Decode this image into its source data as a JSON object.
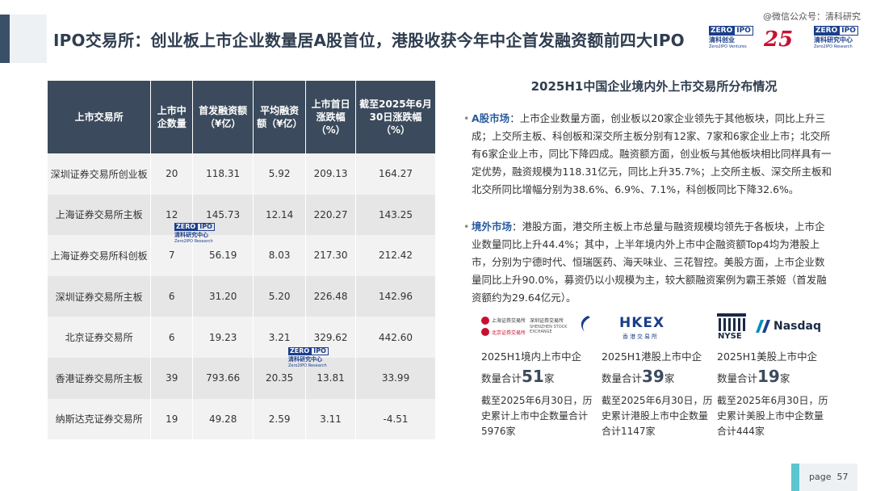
{
  "header": {
    "title": "IPO交易所：创业板上市企业数量居A股首位，港股收获今年中企首发融资额前四大IPO",
    "watermark": "@微信公众号：清科研究"
  },
  "brand_logos": {
    "zero_box_left": "ZERO",
    "zero_box_right": "IPO",
    "ventures_cn": "清科创业",
    "ventures_en": "Zero2IPO Ventures",
    "anniv": "25",
    "research_cn": "清科研究中心",
    "research_en": "Zero2IPO Research"
  },
  "table": {
    "headers": [
      "上市交易所",
      "上市中企数量",
      "首发融资额（¥亿）",
      "平均融资额（¥亿）",
      "上市首日涨跌幅（%）",
      "截至2025年6月30日涨跌幅（%）"
    ],
    "rows": [
      [
        "深圳证券交易所创业板",
        "20",
        "118.31",
        "5.92",
        "209.13",
        "164.27"
      ],
      [
        "上海证券交易所主板",
        "12",
        "145.73",
        "12.14",
        "220.27",
        "143.25"
      ],
      [
        "上海证券交易所科创板",
        "7",
        "56.19",
        "8.03",
        "217.30",
        "212.42"
      ],
      [
        "深圳证券交易所主板",
        "6",
        "31.20",
        "5.20",
        "226.48",
        "142.96"
      ],
      [
        "北京证券交易所",
        "6",
        "19.23",
        "3.21",
        "329.62",
        "442.60"
      ],
      [
        "香港证券交易所主板",
        "39",
        "793.66",
        "20.35",
        "13.81",
        "33.99"
      ],
      [
        "纳斯达克证券交易所",
        "19",
        "49.28",
        "2.59",
        "3.11",
        "-4.51"
      ]
    ],
    "negative_color": "#e0281e"
  },
  "right": {
    "title": "2025H1中国企业境内外上市交易所分布情况",
    "a_share_head": "A股市场",
    "a_share_text": "：上市企业数量方面，创业板以20家企业领先于其他板块，同比上升三成；上交所主板、科创板和深交所主板分别有12家、7家和6家企业上市；北交所有6家企业上市，同比下降四成。融资额方面，创业板与其他板块相比同样具有一定优势，融资规模为118.31亿元，同比上升35.7%；上交所主板、深交所主板和北交所同比增幅分别为38.6%、6.9%、7.1%，科创板同比下降32.6%。",
    "overseas_head": "境外市场",
    "overseas_text": "：港股方面，港交所主板上市总量与融资规模均领先于各板块，上市企业数量同比上升44.4%；其中，上半年境内外上市中企融资额Top4均为港股上市，分别为宁德时代、恒瑞医药、海天味业、三花智控。美股方面，上市企业数量同比上升90.0%，募资仍以小规模为主，较大额融资案例为霸王茶姬（首发融资额约为29.64亿元）。"
  },
  "exchanges": [
    {
      "logo_texts": [
        "上海证券交易所",
        "北京证券交易所",
        "深圳证券交易所",
        "SHENZHEN STOCK EXCHANGE"
      ],
      "line1": "2025H1境内上市中企",
      "prefix": "数量合计",
      "count": "51",
      "unit": "家",
      "note": "截至2025年6月30日，历史累计上市中企数量合计5976家"
    },
    {
      "logo_texts": [
        "HKEX",
        "香港交易所"
      ],
      "line1": "2025H1港股上市中企",
      "prefix": "数量合计",
      "count": "39",
      "unit": "家",
      "note": "截至2025年6月30日，历史累计港股上市中企数量合计1147家"
    },
    {
      "logo_texts": [
        "NYSE",
        "Nasdaq"
      ],
      "line1": "2025H1美股上市中企",
      "prefix": "数量合计",
      "count": "19",
      "unit": "家",
      "note": "截至2025年6月30日，历史累计美股上市中企数量合计444家"
    }
  ],
  "footer": {
    "page_label": "page",
    "page_number": "57"
  }
}
